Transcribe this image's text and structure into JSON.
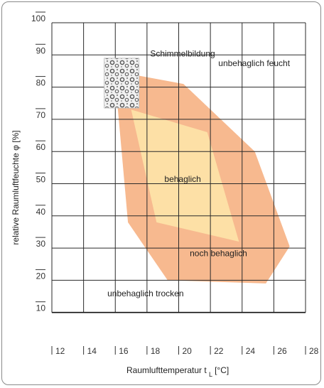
{
  "chart_data": {
    "type": "area",
    "title": "",
    "xlabel_main": "Raumlufttemperatur t",
    "xlabel_sub": "L",
    "xlabel_unit": "[°C]",
    "ylabel": "relative Raumluftfeuchte  φ [%]",
    "xlim": [
      12,
      28
    ],
    "ylim": [
      0,
      100
    ],
    "x_ticks": [
      "12",
      "14",
      "16",
      "18",
      "20",
      "22",
      "24",
      "26",
      "28"
    ],
    "y_ticks": [
      "10",
      "20",
      "30",
      "40",
      "50",
      "60",
      "70",
      "80",
      "90",
      "100"
    ],
    "grid": true,
    "zones": [
      {
        "name": "noch behaglich",
        "color": "#f7b98f",
        "points": [
          [
            16,
            82
          ],
          [
            17,
            84
          ],
          [
            20.3,
            81
          ],
          [
            24.8,
            60
          ],
          [
            27,
            30.5
          ],
          [
            25.5,
            19
          ],
          [
            19.3,
            20
          ],
          [
            16.8,
            38
          ]
        ]
      },
      {
        "name": "behaglich",
        "color": "#fde0a6",
        "points": [
          [
            17,
            73
          ],
          [
            21.8,
            66
          ],
          [
            23.8,
            32
          ],
          [
            18.6,
            38
          ]
        ]
      }
    ],
    "annotations": [
      {
        "text": "Schimmelbildung",
        "x": 18.2,
        "y": 89.5
      },
      {
        "text": "unbehaglich feucht",
        "x": 22.5,
        "y": 86.5
      },
      {
        "text": "behaglich",
        "x": 19.1,
        "y": 50.5
      },
      {
        "text": "noch behaglich",
        "x": 20.7,
        "y": 27.5
      },
      {
        "text": "unbehaglich trocken",
        "x": 15.5,
        "y": 15
      }
    ],
    "mold_image": {
      "x_range": [
        15.3,
        17.5
      ],
      "y_range": [
        73.5,
        89
      ]
    }
  }
}
